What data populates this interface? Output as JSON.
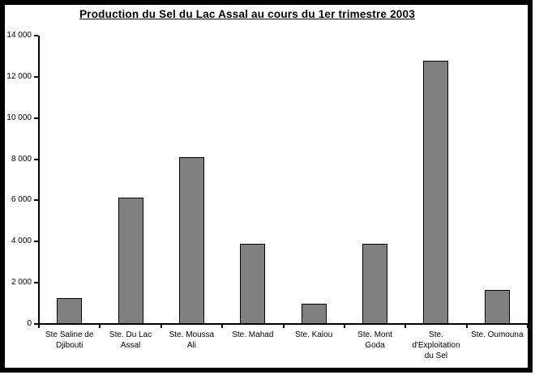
{
  "chart_data": {
    "type": "bar",
    "title": "Production du Sel du Lac Assal au cours du 1er trimestre 2003",
    "categories": [
      "Ste Saline de Djibouti",
      "Ste. Du Lac Assal",
      "Ste. Moussa Ali",
      "Ste. Mahad",
      "Ste. Kalou",
      "Ste. Mont Goda",
      "Ste. d'Exploitation du Sel",
      "Ste. Oumouna"
    ],
    "category_label_lines": [
      [
        "Ste Saline de",
        "Djibouti"
      ],
      [
        "Ste. Du Lac",
        "Assal"
      ],
      [
        "Ste. Moussa",
        "Ali"
      ],
      [
        "Ste. Mahad"
      ],
      [
        "Ste. Kalou"
      ],
      [
        "Ste. Mont",
        "Goda"
      ],
      [
        "Ste.",
        "d'Exploitation",
        "du Sel"
      ],
      [
        "Ste. Oumouna"
      ]
    ],
    "values": [
      1250,
      6150,
      8100,
      3900,
      1000,
      3900,
      12800,
      1650
    ],
    "xlabel": "",
    "ylabel": "",
    "ylim": [
      0,
      14000
    ],
    "ytick_labels": [
      "0",
      "2 000",
      "4 000",
      "6 000",
      "8 000",
      "10 000",
      "12 000",
      "14 000"
    ],
    "grid": false,
    "legend": false,
    "bar_color": "#808080",
    "bar_border_color": "#000000",
    "axis_color": "#000000",
    "background_color": "#FFFFFF",
    "frame_color": "#000000",
    "text_color": "#000000"
  }
}
